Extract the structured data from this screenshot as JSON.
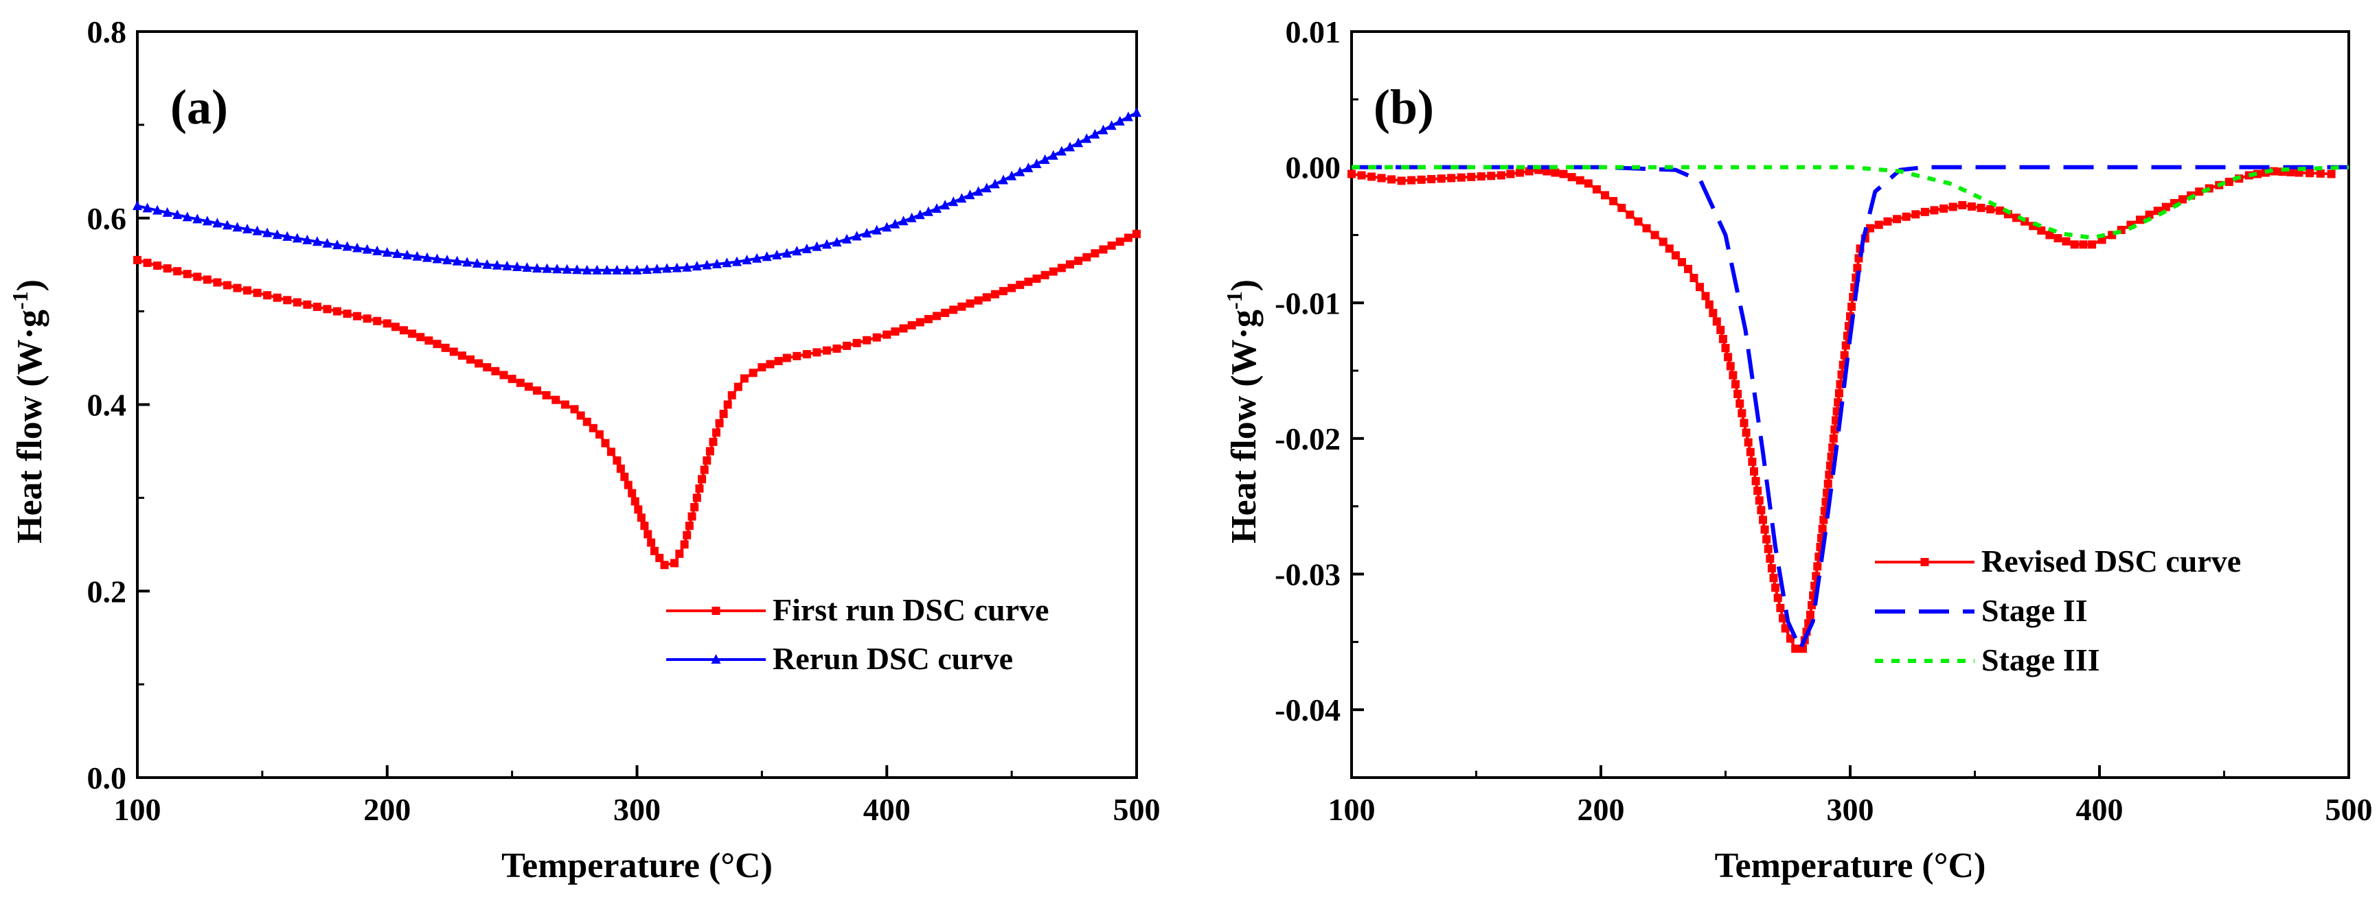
{
  "figure": {
    "panels": [
      "a",
      "b"
    ]
  },
  "chart_data": [
    {
      "type": "line",
      "panel_label": "(a)",
      "xlabel": "Temperature (°C)",
      "ylabel_main": "Heat flow (W·g",
      "ylabel_sup": "-1",
      "ylabel_close": ")",
      "xlim": [
        100,
        500
      ],
      "ylim": [
        0.0,
        0.8
      ],
      "x_ticks": [
        100,
        200,
        300,
        400,
        500
      ],
      "x_tick_labels": [
        "100",
        "200",
        "300",
        "400",
        "500"
      ],
      "y_ticks": [
        0.0,
        0.2,
        0.4,
        0.6,
        0.8
      ],
      "y_tick_labels": [
        "0.0",
        "0.2",
        "0.4",
        "0.6",
        "0.8"
      ],
      "legend_position": "bottom-right",
      "series": [
        {
          "name": "First run DSC curve",
          "color": "#ff0000",
          "marker": "square",
          "dash": "solid",
          "x": [
            100,
            120,
            140,
            160,
            180,
            200,
            220,
            240,
            260,
            275,
            285,
            292,
            298,
            303,
            307,
            311,
            315,
            319,
            323,
            328,
            333,
            338,
            343,
            350,
            360,
            380,
            400,
            420,
            440,
            460,
            480,
            500
          ],
          "y": [
            0.555,
            0.54,
            0.525,
            0.512,
            0.5,
            0.487,
            0.465,
            0.44,
            0.415,
            0.395,
            0.368,
            0.34,
            0.305,
            0.27,
            0.243,
            0.228,
            0.23,
            0.25,
            0.29,
            0.34,
            0.38,
            0.41,
            0.428,
            0.44,
            0.45,
            0.46,
            0.475,
            0.495,
            0.515,
            0.535,
            0.558,
            0.583
          ]
        },
        {
          "name": "Rerun DSC curve",
          "color": "#0000ff",
          "marker": "triangle",
          "dash": "solid",
          "x": [
            100,
            120,
            140,
            160,
            180,
            200,
            220,
            240,
            260,
            280,
            300,
            320,
            340,
            360,
            380,
            400,
            420,
            440,
            460,
            480,
            500
          ],
          "y": [
            0.613,
            0.601,
            0.59,
            0.58,
            0.571,
            0.563,
            0.556,
            0.55,
            0.546,
            0.544,
            0.544,
            0.547,
            0.553,
            0.562,
            0.574,
            0.59,
            0.61,
            0.632,
            0.658,
            0.685,
            0.713
          ]
        }
      ]
    },
    {
      "type": "line",
      "panel_label": "(b)",
      "xlabel": "Temperature (°C)",
      "ylabel_main": "Heat flow (W·g",
      "ylabel_sup": "-1",
      "ylabel_close": ")",
      "xlim": [
        100,
        500
      ],
      "ylim": [
        -0.045,
        0.01
      ],
      "x_ticks": [
        100,
        200,
        300,
        400,
        500
      ],
      "x_tick_labels": [
        "100",
        "200",
        "300",
        "400",
        "500"
      ],
      "y_ticks": [
        0.01,
        0.0,
        -0.01,
        -0.02,
        -0.03,
        -0.04
      ],
      "y_tick_labels": [
        "0.01",
        "0.00",
        "-0.01",
        "-0.02",
        "-0.03",
        "-0.04"
      ],
      "legend_position": "bottom-right",
      "series": [
        {
          "name": "Revised DSC curve",
          "color": "#ff0000",
          "marker": "square",
          "dash": "solid",
          "x": [
            100,
            120,
            140,
            160,
            175,
            185,
            195,
            205,
            215,
            225,
            235,
            242,
            248,
            254,
            260,
            265,
            270,
            274,
            278,
            281,
            284,
            288,
            292,
            296,
            300,
            304,
            308,
            315,
            330,
            345,
            360,
            370,
            380,
            390,
            397,
            405,
            420,
            440,
            460,
            470,
            480,
            493
          ],
          "y": [
            -0.0005,
            -0.001,
            -0.0008,
            -0.0006,
            -0.0002,
            -0.0005,
            -0.0012,
            -0.0025,
            -0.004,
            -0.0055,
            -0.0075,
            -0.0095,
            -0.012,
            -0.016,
            -0.021,
            -0.026,
            -0.031,
            -0.034,
            -0.0355,
            -0.0355,
            -0.033,
            -0.028,
            -0.022,
            -0.016,
            -0.011,
            -0.006,
            -0.0045,
            -0.004,
            -0.0033,
            -0.0028,
            -0.0032,
            -0.004,
            -0.005,
            -0.0057,
            -0.0057,
            -0.005,
            -0.0035,
            -0.0018,
            -0.0006,
            -0.0003,
            -0.0004,
            -0.0005
          ]
        },
        {
          "name": "Stage II",
          "color": "#0000ff",
          "marker": "none",
          "dash": "long-dash",
          "x": [
            100,
            200,
            230,
            240,
            250,
            258,
            265,
            270,
            275,
            280,
            285,
            290,
            295,
            300,
            305,
            310,
            320,
            330,
            400,
            500
          ],
          "y": [
            0.0,
            0.0,
            -0.0002,
            -0.001,
            -0.005,
            -0.012,
            -0.021,
            -0.028,
            -0.0335,
            -0.0355,
            -0.0335,
            -0.027,
            -0.02,
            -0.0125,
            -0.0055,
            -0.0018,
            -0.0002,
            0.0,
            0.0,
            0.0
          ]
        },
        {
          "name": "Stage III",
          "color": "#00ee00",
          "marker": "none",
          "dash": "short-dash",
          "x": [
            100,
            300,
            320,
            340,
            355,
            370,
            385,
            397,
            410,
            425,
            440,
            455,
            470,
            500
          ],
          "y": [
            0.0,
            0.0,
            -0.0003,
            -0.0012,
            -0.0025,
            -0.0039,
            -0.0049,
            -0.0052,
            -0.0047,
            -0.0034,
            -0.0019,
            -0.0008,
            -0.0002,
            0.0
          ]
        }
      ]
    }
  ]
}
